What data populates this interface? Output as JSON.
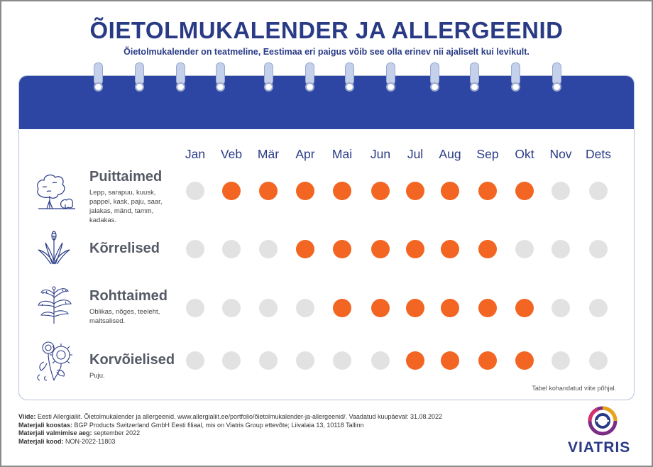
{
  "title": "ÕIETOLMUKALENDER JA ALLERGEENID",
  "subtitle": "Õietolmukalender on teatmeline, Eestimaa eri paigus võib see olla erinev nii ajaliselt kui levikult.",
  "months": [
    "Jan",
    "Veb",
    "Mär",
    "Apr",
    "Mai",
    "Jun",
    "Jul",
    "Aug",
    "Sep",
    "Okt",
    "Nov",
    "Dets"
  ],
  "categories": [
    {
      "name": "Puittaimed",
      "description": "Lepp, sarapuu, kuusk, pappel, kask, paju, saar, jalakas, mänd, tamm, kadakas.",
      "icon": "tree-icon",
      "active": [
        false,
        true,
        true,
        true,
        true,
        true,
        true,
        true,
        true,
        true,
        false,
        false
      ]
    },
    {
      "name": "Kõrrelised",
      "description": "",
      "icon": "grass-icon",
      "active": [
        false,
        false,
        false,
        true,
        true,
        true,
        true,
        true,
        true,
        false,
        false,
        false
      ]
    },
    {
      "name": "Rohttaimed",
      "description": "Oblikas, nõges, teeleht, maltsalised.",
      "icon": "herb-icon",
      "active": [
        false,
        false,
        false,
        false,
        true,
        true,
        true,
        true,
        true,
        true,
        false,
        false
      ]
    },
    {
      "name": "Korvõielised",
      "description": "Puju.",
      "icon": "daisy-icon",
      "active": [
        false,
        false,
        false,
        false,
        false,
        false,
        true,
        true,
        true,
        true,
        false,
        false
      ]
    }
  ],
  "colors": {
    "active": "#f26522",
    "inactive": "#e2e2e2",
    "header": "#2d46a3",
    "title": "#2a3b86"
  },
  "note": "Tabel kohandatud viite põhjal.",
  "footer": {
    "source_label": "Viide:",
    "source": "Eesti Allergialiit. Õietolmukalender ja allergeenid. www.allergialiit.ee/portfolio/õietolmukalender-ja-allergeenid/. Vaadatud kuupäeval: 31.08.2022",
    "compiled_label": "Materjali koostas:",
    "compiled": "BGP Products Switzerland GmbH Eesti filiaal, mis on Viatris Group ettevõte; Liivalaia 13, 10118 Tallinn",
    "date_label": "Materjali valmimise aeg:",
    "date": "september 2022",
    "code_label": "Materjali kood:",
    "code": "NON-2022-11803"
  },
  "logo_text": "VIATRIS"
}
